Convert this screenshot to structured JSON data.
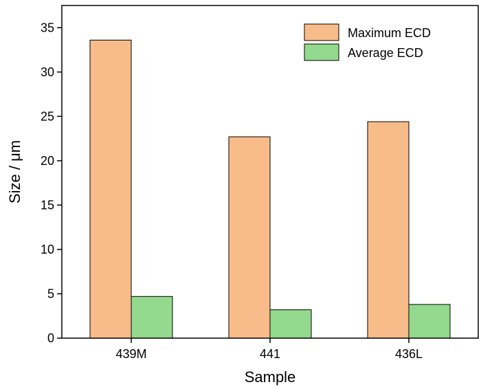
{
  "chart_data": {
    "type": "bar",
    "xlabel": "Sample",
    "ylabel": "Size / μm",
    "categories": [
      "439M",
      "441",
      "436L"
    ],
    "series": [
      {
        "name": "Maximum ECD",
        "values": [
          33.6,
          22.7,
          24.4
        ],
        "color": "#F8BC8A"
      },
      {
        "name": "Average ECD",
        "values": [
          4.7,
          3.2,
          3.8
        ],
        "color": "#93D98E"
      }
    ],
    "ylim": [
      0,
      37.5
    ],
    "yticks": [
      0,
      5,
      10,
      15,
      20,
      25,
      30,
      35
    ],
    "grid": false,
    "legend_position": "top-right"
  }
}
